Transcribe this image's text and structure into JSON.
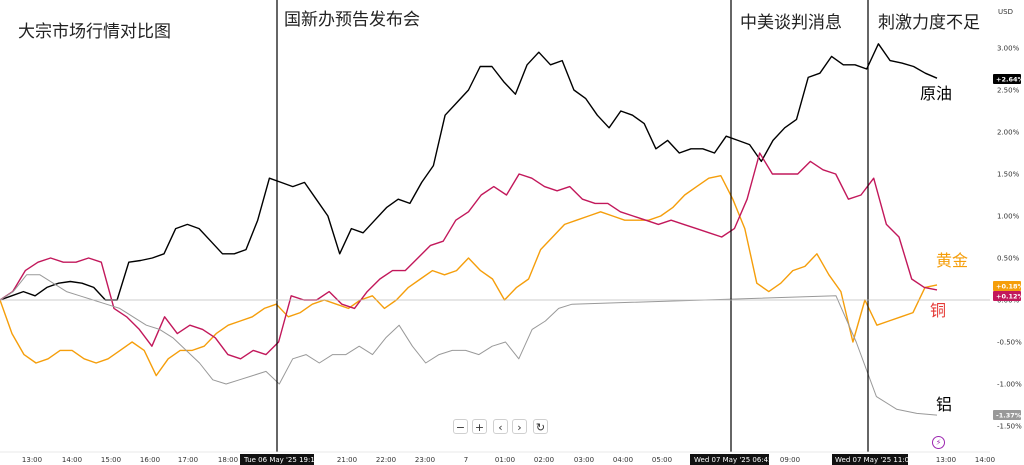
{
  "chart_data": {
    "type": "line",
    "title": "大宗市场行情对比图",
    "currency": "USD",
    "yunit": "%",
    "ylim": [
      -1.5,
      3.0
    ],
    "yticks": [
      "3.00%",
      "2.50%",
      "2.00%",
      "1.50%",
      "1.00%",
      "0.50%",
      "0.00%",
      "-0.50%",
      "-1.00%",
      "-1.50%"
    ],
    "xlabels": [
      "13:00",
      "14:00",
      "15:00",
      "16:00",
      "17:00",
      "18:00",
      "21:00",
      "22:00",
      "23:00",
      "7",
      "01:00",
      "02:00",
      "03:00",
      "04:00",
      "05:00",
      "09:00",
      "13:00",
      "14:00"
    ],
    "xhighlights": [
      "Tue 06 May '25   19:15",
      "Wed 07 May '25   06:45",
      "Wed 07 May '25   11:00"
    ],
    "annotations": [
      "国新办预告发布会",
      "中美谈判消息",
      "刺激力度不足"
    ],
    "grid": false,
    "legend": "right labels",
    "series": [
      {
        "name": "原油",
        "color": "#000000",
        "last": "+2.64%",
        "values": [
          0.0,
          0.05,
          0.1,
          0.05,
          0.15,
          0.2,
          0.22,
          0.2,
          0.15,
          0.0,
          0.0,
          0.45,
          0.47,
          0.5,
          0.55,
          0.85,
          0.9,
          0.85,
          0.7,
          0.55,
          0.55,
          0.6,
          0.95,
          1.45,
          1.4,
          1.35,
          1.4,
          1.2,
          1.0,
          0.55,
          0.85,
          0.8,
          0.95,
          1.1,
          1.2,
          1.15,
          1.4,
          1.6,
          2.2,
          2.35,
          2.5,
          2.78,
          2.78,
          2.6,
          2.45,
          2.8,
          2.95,
          2.8,
          2.85,
          2.5,
          2.4,
          2.2,
          2.05,
          2.25,
          2.2,
          2.1,
          1.8,
          1.9,
          1.75,
          1.8,
          1.8,
          1.75,
          1.95,
          1.9,
          1.85,
          1.65,
          1.9,
          2.05,
          2.15,
          2.65,
          2.7,
          2.9,
          2.8,
          2.8,
          2.75,
          3.05,
          2.85,
          2.82,
          2.78,
          2.7,
          2.64
        ]
      },
      {
        "name": "黄金",
        "color": "#f59e0b",
        "last": "+0.18%",
        "values": [
          0.0,
          -0.4,
          -0.65,
          -0.75,
          -0.7,
          -0.6,
          -0.6,
          -0.7,
          -0.75,
          -0.7,
          -0.6,
          -0.5,
          -0.6,
          -0.9,
          -0.7,
          -0.6,
          -0.6,
          -0.55,
          -0.4,
          -0.3,
          -0.25,
          -0.2,
          -0.1,
          -0.05,
          -0.2,
          -0.15,
          -0.05,
          0.0,
          -0.05,
          -0.1,
          0.0,
          0.05,
          -0.1,
          0.0,
          0.15,
          0.25,
          0.35,
          0.3,
          0.35,
          0.5,
          0.35,
          0.25,
          0.0,
          0.15,
          0.25,
          0.6,
          0.75,
          0.9,
          0.95,
          1.0,
          1.05,
          1.0,
          0.95,
          0.95,
          0.95,
          1.0,
          1.1,
          1.25,
          1.35,
          1.45,
          1.48,
          1.2,
          0.85,
          0.2,
          0.1,
          0.2,
          0.35,
          0.4,
          0.55,
          0.3,
          0.1,
          -0.5,
          0.0,
          -0.3,
          -0.25,
          -0.2,
          -0.15,
          0.15,
          0.18
        ]
      },
      {
        "name": "铜",
        "color": "#c2185b",
        "last": "+0.12%",
        "values": [
          0.0,
          0.1,
          0.35,
          0.45,
          0.5,
          0.45,
          0.45,
          0.5,
          0.45,
          -0.1,
          -0.2,
          -0.35,
          -0.55,
          -0.2,
          -0.4,
          -0.3,
          -0.35,
          -0.45,
          -0.65,
          -0.7,
          -0.6,
          -0.65,
          -0.5,
          0.05,
          0.0,
          0.0,
          0.1,
          -0.05,
          -0.1,
          0.1,
          0.25,
          0.35,
          0.35,
          0.5,
          0.65,
          0.7,
          0.95,
          1.05,
          1.25,
          1.35,
          1.25,
          1.5,
          1.45,
          1.35,
          1.3,
          1.35,
          1.2,
          1.15,
          1.15,
          1.05,
          1.0,
          0.95,
          0.9,
          0.95,
          0.9,
          0.85,
          0.8,
          0.75,
          0.85,
          1.2,
          1.75,
          1.5,
          1.5,
          1.5,
          1.65,
          1.55,
          1.5,
          1.2,
          1.25,
          1.45,
          0.9,
          0.75,
          0.25,
          0.15,
          0.12
        ]
      },
      {
        "name": "铝",
        "color": "#999999",
        "last": "-1.37%",
        "values": [
          0.0,
          0.1,
          0.3,
          0.3,
          0.2,
          0.1,
          0.05,
          0.0,
          -0.05,
          -0.1,
          -0.2,
          -0.3,
          -0.35,
          -0.45,
          -0.6,
          -0.75,
          -0.95,
          -1.0,
          -0.95,
          -0.9,
          -0.85,
          -1.0,
          -0.7,
          -0.65,
          -0.75,
          -0.65,
          -0.65,
          -0.55,
          -0.65,
          -0.45,
          -0.3,
          -0.55,
          -0.75,
          -0.65,
          -0.6,
          -0.6,
          -0.65,
          -0.55,
          -0.5,
          -0.7,
          -0.35,
          -0.25,
          -0.1,
          -0.05,
          0.05,
          -0.5,
          -1.15,
          -1.3,
          -1.35,
          -1.37
        ]
      }
    ]
  },
  "controls": {
    "minus": "−",
    "plus": "+",
    "prev": "‹",
    "next": "›",
    "reset": "↻"
  },
  "flash_icon": "lightning-icon"
}
